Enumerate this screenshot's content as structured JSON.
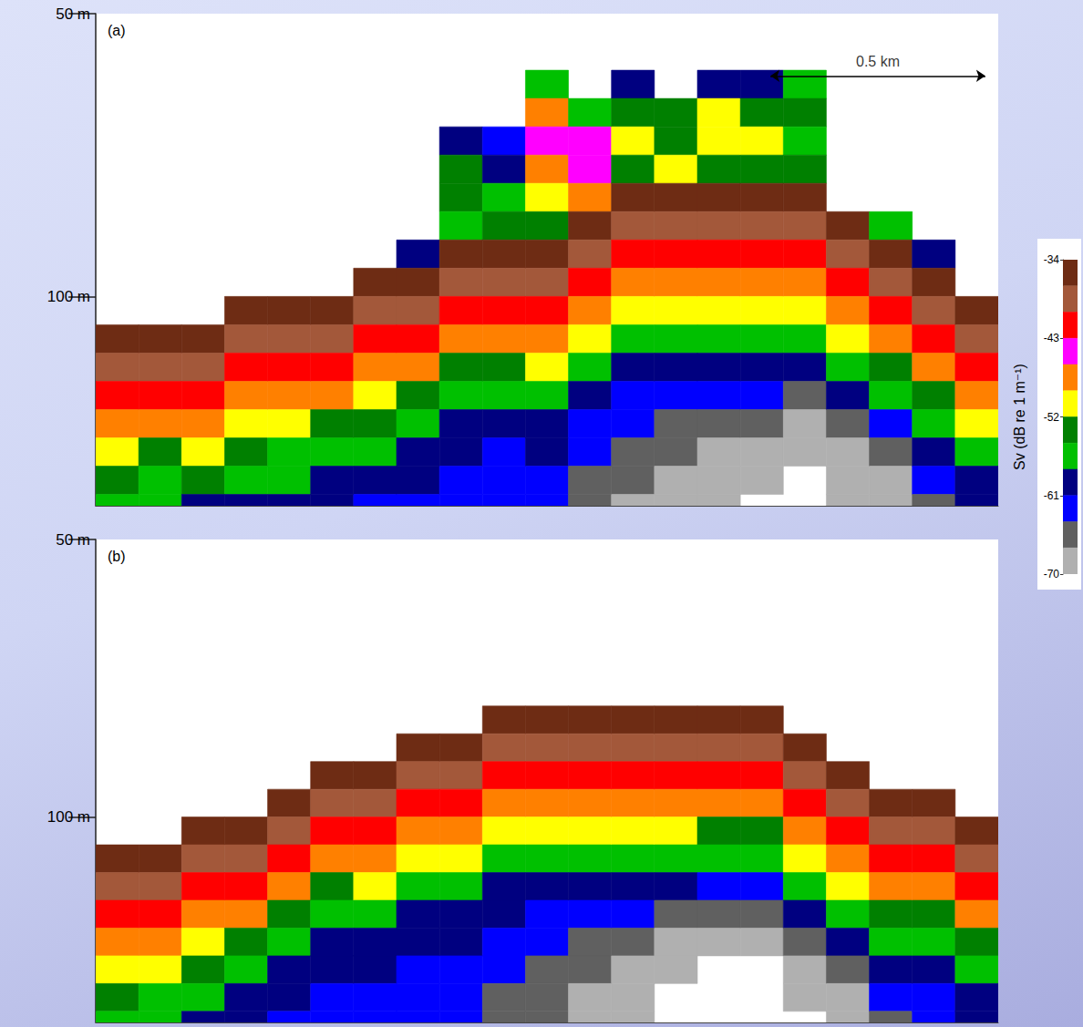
{
  "chart_data": [
    {
      "type": "heatmap",
      "title": "(a)",
      "xlim": [
        0,
        2.1
      ],
      "ylim": [
        50,
        137
      ],
      "yticks": [
        {
          "value": 50,
          "label": "50 m"
        },
        {
          "value": 100,
          "label": "100 m"
        }
      ],
      "tick_labels": "y",
      "scale_bar": {
        "x": [
          1.57,
          2.07
        ],
        "depth": 61,
        "label": "0.5 km"
      },
      "x_edges": [
        0,
        0.1,
        0.2,
        0.3,
        0.4,
        0.5,
        0.6,
        0.7,
        0.8,
        0.9,
        1.0,
        1.1,
        1.2,
        1.3,
        1.4,
        1.5,
        1.6,
        1.7,
        1.8,
        1.9,
        2.0,
        2.1
      ],
      "depth_edges": [
        50,
        55,
        60,
        65,
        70,
        75,
        80,
        85,
        90,
        95,
        100,
        105,
        110,
        115,
        120,
        125,
        130,
        135,
        140
      ],
      "sv_columns": [
        [
          null,
          null,
          null,
          null,
          null,
          null,
          null,
          null,
          null,
          null,
          null,
          -35,
          -37,
          -42,
          -47,
          -51,
          -54,
          -57
        ],
        [
          null,
          null,
          null,
          null,
          null,
          null,
          null,
          null,
          null,
          null,
          null,
          -35,
          -37,
          -42,
          -47,
          -52,
          -55,
          -57
        ],
        [
          null,
          null,
          null,
          null,
          null,
          null,
          null,
          null,
          null,
          null,
          null,
          -35,
          -37,
          -41,
          -46,
          -51,
          -54,
          -58
        ],
        [
          null,
          null,
          null,
          null,
          null,
          null,
          null,
          null,
          null,
          null,
          -35,
          -37,
          -42,
          -47,
          -51,
          -54,
          -57,
          -59
        ],
        [
          null,
          null,
          null,
          null,
          null,
          null,
          null,
          null,
          null,
          null,
          -35,
          -37,
          -42,
          -47,
          -51,
          -55,
          -57,
          -60
        ],
        [
          null,
          null,
          null,
          null,
          null,
          null,
          null,
          null,
          null,
          null,
          -35,
          -37,
          -42,
          -47,
          -52,
          -55,
          -58,
          -60
        ],
        [
          null,
          null,
          null,
          null,
          null,
          null,
          null,
          null,
          null,
          -35,
          -37,
          -42,
          -47,
          -51,
          -54,
          -57,
          -59,
          -61
        ],
        [
          null,
          null,
          null,
          null,
          null,
          null,
          null,
          null,
          -60,
          -35,
          -37,
          -42,
          -47,
          -52,
          -55,
          -58,
          -60,
          -62
        ],
        [
          null,
          null,
          null,
          null,
          -58,
          -54,
          -52,
          -55,
          -35,
          -37,
          -42,
          -47,
          -52,
          -55,
          -58,
          -60,
          -61,
          -62
        ],
        [
          null,
          null,
          null,
          null,
          -61,
          -60,
          -55,
          -52,
          -35,
          -37,
          -42,
          -47,
          -52,
          -56,
          -59,
          -61,
          -62,
          -63
        ],
        [
          null,
          null,
          -57,
          -47,
          -44,
          -46,
          -50,
          -53,
          -35,
          -37,
          -41,
          -46,
          -51,
          -55,
          -58,
          -60,
          -62,
          -63
        ],
        [
          null,
          null,
          null,
          -55,
          -44,
          -43,
          -47,
          -35,
          -37,
          -41,
          -46,
          -51,
          -55,
          -58,
          -61,
          -63,
          -65,
          -66
        ],
        [
          null,
          null,
          -60,
          -53,
          -50,
          -54,
          -35,
          -37,
          -41,
          -46,
          -51,
          -55,
          -58,
          -61,
          -63,
          -65,
          -66,
          -67
        ],
        [
          null,
          null,
          null,
          -54,
          -52,
          -50,
          -35,
          -37,
          -41,
          -46,
          -51,
          -55,
          -59,
          -62,
          -64,
          -66,
          -67,
          -68
        ],
        [
          null,
          null,
          -60,
          -51,
          -49,
          -52,
          -35,
          -37,
          -41,
          -46,
          -51,
          -55,
          -59,
          -62,
          -65,
          -67,
          -68,
          -69
        ],
        [
          null,
          null,
          -58,
          -53,
          -50,
          -53,
          -35,
          -37,
          -41,
          -46,
          -51,
          -55,
          -59,
          -63,
          -66,
          -68,
          -69,
          -71
        ],
        [
          null,
          null,
          -55,
          -52,
          -55,
          -53,
          -35,
          -37,
          -41,
          -46,
          -51,
          -56,
          -60,
          -64,
          -67,
          -69,
          -71,
          -72
        ],
        [
          null,
          null,
          null,
          null,
          null,
          null,
          null,
          -35,
          -37,
          -41,
          -46,
          -51,
          -56,
          -60,
          -64,
          -67,
          -69,
          -70
        ],
        [
          null,
          null,
          null,
          null,
          null,
          null,
          null,
          -57,
          -35,
          -37,
          -42,
          -47,
          -52,
          -57,
          -61,
          -64,
          -67,
          -68
        ],
        [
          null,
          null,
          null,
          null,
          null,
          null,
          null,
          null,
          -58,
          -35,
          -37,
          -42,
          -47,
          -52,
          -56,
          -59,
          -62,
          -64
        ],
        [
          null,
          null,
          null,
          null,
          null,
          null,
          null,
          null,
          null,
          null,
          -35,
          -37,
          -42,
          -47,
          -51,
          -55,
          -58,
          -60
        ]
      ]
    },
    {
      "type": "heatmap",
      "title": "(b)",
      "xlim": [
        0,
        2.1
      ],
      "ylim": [
        50,
        137
      ],
      "yticks": [
        {
          "value": 50,
          "label": "50 m"
        },
        {
          "value": 100,
          "label": "100 m"
        }
      ],
      "tick_labels": "y",
      "x_edges": [
        0,
        0.1,
        0.2,
        0.3,
        0.4,
        0.5,
        0.6,
        0.7,
        0.8,
        0.9,
        1.0,
        1.1,
        1.2,
        1.3,
        1.4,
        1.5,
        1.6,
        1.7,
        1.8,
        1.9,
        2.0,
        2.1
      ],
      "depth_edges": [
        50,
        55,
        60,
        65,
        70,
        75,
        80,
        85,
        90,
        95,
        100,
        105,
        110,
        115,
        120,
        125,
        130,
        135,
        140
      ],
      "sv_columns": [
        [
          null,
          null,
          null,
          null,
          null,
          null,
          null,
          null,
          null,
          null,
          null,
          -35,
          -37,
          -42,
          -47,
          -51,
          -54,
          -57
        ],
        [
          null,
          null,
          null,
          null,
          null,
          null,
          null,
          null,
          null,
          null,
          null,
          -35,
          -37,
          -42,
          -47,
          -51,
          -55,
          -57
        ],
        [
          null,
          null,
          null,
          null,
          null,
          null,
          null,
          null,
          null,
          null,
          -35,
          -37,
          -42,
          -47,
          -51,
          -54,
          -57,
          -59
        ],
        [
          null,
          null,
          null,
          null,
          null,
          null,
          null,
          null,
          null,
          null,
          -35,
          -37,
          -42,
          -47,
          -52,
          -55,
          -58,
          -60
        ],
        [
          null,
          null,
          null,
          null,
          null,
          null,
          null,
          null,
          null,
          -35,
          -37,
          -42,
          -47,
          -52,
          -55,
          -58,
          -60,
          -61
        ],
        [
          null,
          null,
          null,
          null,
          null,
          null,
          null,
          null,
          -35,
          -37,
          -42,
          -47,
          -52,
          -56,
          -58,
          -60,
          -61,
          -62
        ],
        [
          null,
          null,
          null,
          null,
          null,
          null,
          null,
          null,
          -35,
          -37,
          -41,
          -46,
          -51,
          -55,
          -58,
          -60,
          -61,
          -62
        ],
        [
          null,
          null,
          null,
          null,
          null,
          null,
          null,
          -35,
          -37,
          -41,
          -46,
          -51,
          -55,
          -58,
          -60,
          -61,
          -62,
          -62
        ],
        [
          null,
          null,
          null,
          null,
          null,
          null,
          null,
          -35,
          -37,
          -41,
          -46,
          -51,
          -55,
          -58,
          -60,
          -62,
          -63,
          -63
        ],
        [
          null,
          null,
          null,
          null,
          null,
          null,
          -35,
          -37,
          -41,
          -46,
          -51,
          -55,
          -58,
          -60,
          -62,
          -63,
          -64,
          -64
        ],
        [
          null,
          null,
          null,
          null,
          null,
          null,
          -35,
          -37,
          -41,
          -46,
          -51,
          -55,
          -58,
          -61,
          -63,
          -64,
          -65,
          -66
        ],
        [
          null,
          null,
          null,
          null,
          null,
          null,
          -35,
          -37,
          -41,
          -46,
          -51,
          -55,
          -59,
          -62,
          -64,
          -66,
          -67,
          -67
        ],
        [
          null,
          null,
          null,
          null,
          null,
          null,
          -35,
          -37,
          -41,
          -46,
          -51,
          -56,
          -60,
          -63,
          -66,
          -68,
          -69,
          -69
        ],
        [
          null,
          null,
          null,
          null,
          null,
          null,
          -35,
          -37,
          -41,
          -46,
          -51,
          -56,
          -60,
          -64,
          -67,
          -69,
          -71,
          -72
        ],
        [
          null,
          null,
          null,
          null,
          null,
          null,
          -35,
          -37,
          -41,
          -46,
          -52,
          -57,
          -61,
          -65,
          -68,
          -71,
          -72,
          -73
        ],
        [
          null,
          null,
          null,
          null,
          null,
          null,
          -35,
          -37,
          -41,
          -46,
          -52,
          -57,
          -61,
          -65,
          -68,
          -71,
          -72,
          -73
        ],
        [
          null,
          null,
          null,
          null,
          null,
          null,
          null,
          -35,
          -37,
          -41,
          -46,
          -51,
          -56,
          -60,
          -64,
          -67,
          -69,
          -71
        ],
        [
          null,
          null,
          null,
          null,
          null,
          null,
          null,
          null,
          -35,
          -37,
          -41,
          -46,
          -51,
          -56,
          -60,
          -64,
          -67,
          -69
        ],
        [
          null,
          null,
          null,
          null,
          null,
          null,
          null,
          null,
          null,
          -35,
          -37,
          -42,
          -47,
          -52,
          -56,
          -60,
          -63,
          -65
        ],
        [
          null,
          null,
          null,
          null,
          null,
          null,
          null,
          null,
          null,
          -35,
          -37,
          -42,
          -47,
          -52,
          -56,
          -59,
          -61,
          -63
        ],
        [
          null,
          null,
          null,
          null,
          null,
          null,
          null,
          null,
          null,
          null,
          -35,
          -37,
          -42,
          -47,
          -52,
          -55,
          -58,
          -60
        ]
      ]
    },
    {
      "type": "colorbar",
      "y_label": "Sv (dB re 1 m⁻¹)",
      "ylim": [
        -70,
        -34
      ],
      "yticks": [
        -34,
        -43,
        -52,
        -61,
        -70
      ],
      "colors": [
        "#6e2c14",
        "#a3583a",
        "#ff0000",
        "#ff00ff",
        "#ff8000",
        "#ffff00",
        "#008000",
        "#00c000",
        "#000080",
        "#0000ff",
        "#606060",
        "#b0b0b0"
      ]
    }
  ]
}
